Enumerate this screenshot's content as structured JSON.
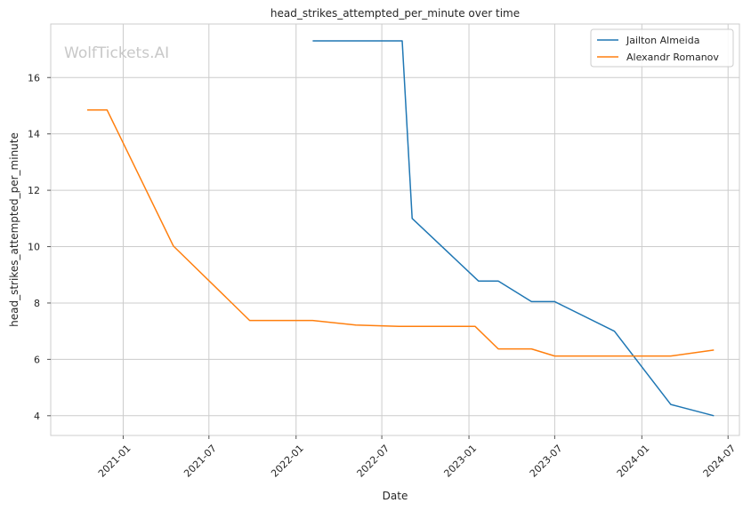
{
  "chart_data": {
    "type": "line",
    "title": "head_strikes_attempted_per_minute over time",
    "xlabel": "Date",
    "ylabel": "head_strikes_attempted_per_minute",
    "watermark": "WolfTickets.AI",
    "x_axis": "date",
    "xlim": [
      "2020-08-01",
      "2024-07-25"
    ],
    "ylim": [
      3.3,
      17.9
    ],
    "x_ticks": [
      "2021-01-01",
      "2021-07-01",
      "2022-01-01",
      "2022-07-01",
      "2023-01-01",
      "2023-07-01",
      "2024-01-01",
      "2024-07-01"
    ],
    "x_tick_labels": [
      "2021-01",
      "2021-07",
      "2022-01",
      "2022-07",
      "2023-01",
      "2023-07",
      "2024-01",
      "2024-07"
    ],
    "y_ticks": [
      4,
      6,
      8,
      10,
      12,
      14,
      16
    ],
    "y_tick_labels": [
      "4",
      "6",
      "8",
      "10",
      "12",
      "14",
      "16"
    ],
    "grid": true,
    "legend_position": "top-right",
    "series": [
      {
        "name": "Jailton Almeida",
        "color": "#1f77b4",
        "points": [
          [
            "2022-02-05",
            17.3
          ],
          [
            "2022-08-13",
            17.3
          ],
          [
            "2022-09-03",
            11.0
          ],
          [
            "2023-01-21",
            8.78
          ],
          [
            "2023-03-04",
            8.78
          ],
          [
            "2023-05-13",
            8.05
          ],
          [
            "2023-07-01",
            8.05
          ],
          [
            "2023-11-04",
            7.0
          ],
          [
            "2024-03-02",
            4.4
          ],
          [
            "2024-06-01",
            4.0
          ]
        ]
      },
      {
        "name": "Alexandr Romanov",
        "color": "#ff7f0e",
        "points": [
          [
            "2020-10-17",
            14.85
          ],
          [
            "2020-11-28",
            14.85
          ],
          [
            "2021-04-17",
            10.02
          ],
          [
            "2021-09-25",
            7.38
          ],
          [
            "2022-02-05",
            7.38
          ],
          [
            "2022-05-07",
            7.22
          ],
          [
            "2022-08-06",
            7.17
          ],
          [
            "2023-01-14",
            7.17
          ],
          [
            "2023-03-04",
            6.37
          ],
          [
            "2023-05-13",
            6.37
          ],
          [
            "2023-07-01",
            6.12
          ],
          [
            "2024-03-02",
            6.12
          ],
          [
            "2024-06-01",
            6.33
          ]
        ]
      }
    ]
  }
}
